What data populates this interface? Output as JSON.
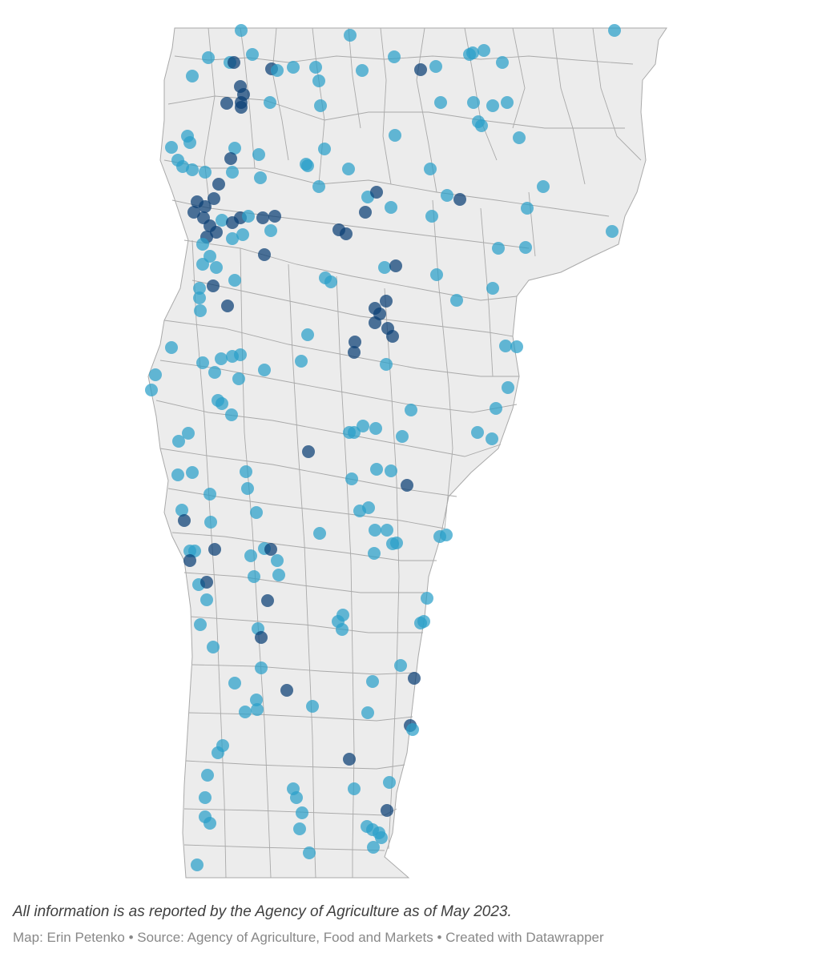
{
  "map": {
    "region_fill": "#ececec",
    "boundary_stroke": "#a9a9a9",
    "marker_color": "#2a9fc9",
    "marker_dark_color": "#0a3f74",
    "marker_opacity": 0.72
  },
  "note": "All information is as reported by the Agency of Agriculture as of May 2023.",
  "credits": {
    "map_label": "Map: ",
    "author": "Erin Petenko",
    "sep1": " • ",
    "source_label": "Source: ",
    "source": "Agency of Agriculture, Food and Markets",
    "sep2": " • ",
    "tool": "Created with Datawrapper"
  }
}
